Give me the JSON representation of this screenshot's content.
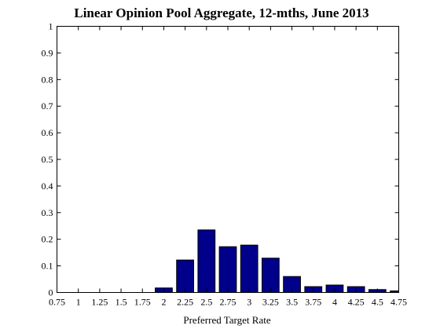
{
  "chart_data": {
    "type": "bar",
    "title": "Linear Opinion Pool Aggregate, 12-mths, June 2013",
    "xlabel": "Preferred Target Rate",
    "ylabel": "",
    "ylim": [
      0,
      1
    ],
    "xlim": [
      0.75,
      4.75
    ],
    "grid": false,
    "categories": [
      "0.75",
      "1",
      "1.25",
      "1.5",
      "1.75",
      "2",
      "2.25",
      "2.5",
      "2.75",
      "3",
      "3.25",
      "3.5",
      "3.75",
      "4",
      "4.25",
      "4.5",
      "4.75"
    ],
    "x": [
      0.75,
      1,
      1.25,
      1.5,
      1.75,
      2,
      2.25,
      2.5,
      2.75,
      3,
      3.25,
      3.5,
      3.75,
      4,
      4.25,
      4.5,
      4.75
    ],
    "values": [
      0,
      0,
      0,
      0,
      0,
      0.017,
      0.122,
      0.235,
      0.172,
      0.178,
      0.129,
      0.06,
      0.022,
      0.028,
      0.022,
      0.011,
      0.006
    ],
    "x_ticks": [
      "0.75",
      "1",
      "1.25",
      "1.5",
      "1.75",
      "2",
      "2.25",
      "2.5",
      "2.75",
      "3",
      "3.25",
      "3.5",
      "3.75",
      "4",
      "4.25",
      "4.5",
      "4.75"
    ],
    "y_ticks": [
      "0",
      "0.1",
      "0.2",
      "0.3",
      "0.4",
      "0.5",
      "0.6",
      "0.7",
      "0.8",
      "0.9",
      "1"
    ],
    "bar_color": "#00008b"
  }
}
